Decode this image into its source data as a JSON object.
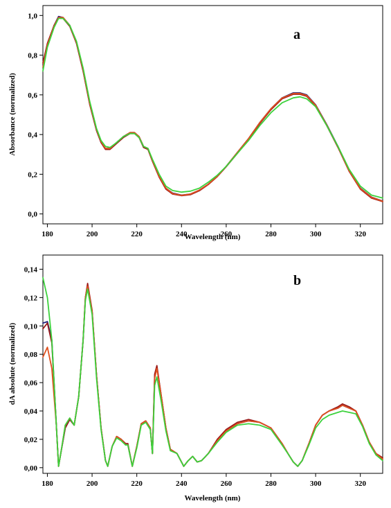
{
  "chart_data": [
    {
      "type": "line",
      "panel_label": "a",
      "xlabel": "Wavelength (nm)",
      "ylabel": "Absorbance (normalized)",
      "xlim": [
        178,
        330
      ],
      "ylim": [
        -0.05,
        1.05
      ],
      "x_ticks": [
        180,
        200,
        220,
        240,
        260,
        280,
        300,
        320
      ],
      "y_ticks": [
        0.0,
        0.2,
        0.4,
        0.6,
        0.8,
        1.0
      ],
      "y_tick_labels": [
        "0,0",
        "0,2",
        "0,4",
        "0,6",
        "0,8",
        "1,0"
      ],
      "grid": false,
      "series": [
        {
          "color": "#1e1e7a",
          "x": [
            178,
            180,
            183,
            185,
            187,
            190,
            193,
            196,
            199,
            202,
            204,
            206,
            208,
            211,
            214,
            217,
            219,
            221,
            223,
            225,
            227,
            230,
            233,
            236,
            240,
            244,
            248,
            252,
            256,
            260,
            265,
            270,
            275,
            280,
            285,
            290,
            293,
            296,
            300,
            305,
            310,
            315,
            320,
            325,
            330
          ],
          "y": [
            0.75,
            0.85,
            0.95,
            0.995,
            0.99,
            0.95,
            0.86,
            0.72,
            0.55,
            0.42,
            0.36,
            0.33,
            0.33,
            0.36,
            0.39,
            0.41,
            0.41,
            0.39,
            0.34,
            0.33,
            0.27,
            0.19,
            0.13,
            0.105,
            0.095,
            0.1,
            0.12,
            0.15,
            0.19,
            0.24,
            0.31,
            0.38,
            0.46,
            0.53,
            0.585,
            0.61,
            0.61,
            0.6,
            0.55,
            0.45,
            0.34,
            0.22,
            0.13,
            0.085,
            0.065
          ]
        },
        {
          "color": "#9a1a1a",
          "x": [
            178,
            180,
            183,
            185,
            187,
            190,
            193,
            196,
            199,
            202,
            204,
            206,
            208,
            211,
            214,
            217,
            219,
            221,
            223,
            225,
            227,
            230,
            233,
            236,
            240,
            244,
            248,
            252,
            256,
            260,
            265,
            270,
            275,
            280,
            285,
            290,
            293,
            296,
            300,
            305,
            310,
            315,
            320,
            325,
            330
          ],
          "y": [
            0.76,
            0.86,
            0.95,
            0.99,
            0.985,
            0.945,
            0.86,
            0.72,
            0.55,
            0.42,
            0.36,
            0.325,
            0.325,
            0.355,
            0.385,
            0.405,
            0.405,
            0.385,
            0.335,
            0.325,
            0.265,
            0.185,
            0.125,
            0.1,
            0.092,
            0.097,
            0.117,
            0.148,
            0.188,
            0.238,
            0.305,
            0.375,
            0.455,
            0.525,
            0.58,
            0.603,
            0.603,
            0.593,
            0.545,
            0.445,
            0.335,
            0.215,
            0.125,
            0.08,
            0.062
          ]
        },
        {
          "color": "#e0501e",
          "x": [
            178,
            180,
            183,
            185,
            187,
            190,
            193,
            196,
            199,
            202,
            204,
            206,
            208,
            211,
            214,
            217,
            219,
            221,
            223,
            225,
            227,
            230,
            233,
            236,
            240,
            244,
            248,
            252,
            256,
            260,
            265,
            270,
            275,
            280,
            285,
            290,
            293,
            296,
            300,
            305,
            310,
            315,
            320,
            325,
            330
          ],
          "y": [
            0.74,
            0.85,
            0.945,
            0.99,
            0.99,
            0.95,
            0.865,
            0.725,
            0.555,
            0.425,
            0.365,
            0.33,
            0.33,
            0.36,
            0.39,
            0.41,
            0.41,
            0.39,
            0.34,
            0.33,
            0.27,
            0.19,
            0.13,
            0.103,
            0.094,
            0.1,
            0.12,
            0.15,
            0.19,
            0.24,
            0.31,
            0.38,
            0.46,
            0.53,
            0.584,
            0.607,
            0.607,
            0.597,
            0.548,
            0.448,
            0.338,
            0.218,
            0.128,
            0.084,
            0.064
          ]
        },
        {
          "color": "#3cd23c",
          "x": [
            178,
            180,
            183,
            185,
            187,
            190,
            193,
            196,
            199,
            202,
            204,
            206,
            208,
            211,
            214,
            217,
            219,
            221,
            223,
            225,
            227,
            230,
            233,
            236,
            240,
            244,
            248,
            252,
            256,
            260,
            265,
            270,
            275,
            280,
            285,
            290,
            293,
            296,
            300,
            305,
            310,
            315,
            320,
            325,
            330
          ],
          "y": [
            0.72,
            0.84,
            0.94,
            0.985,
            0.985,
            0.95,
            0.87,
            0.735,
            0.565,
            0.43,
            0.37,
            0.34,
            0.335,
            0.36,
            0.39,
            0.405,
            0.405,
            0.385,
            0.34,
            0.33,
            0.275,
            0.2,
            0.14,
            0.118,
            0.11,
            0.115,
            0.13,
            0.16,
            0.195,
            0.24,
            0.305,
            0.37,
            0.445,
            0.51,
            0.56,
            0.585,
            0.59,
            0.58,
            0.54,
            0.445,
            0.34,
            0.225,
            0.14,
            0.095,
            0.08
          ]
        }
      ]
    },
    {
      "type": "line",
      "panel_label": "b",
      "xlabel": "Wavelength (nm)",
      "ylabel": "dA absolute (normalized)",
      "xlim": [
        178,
        330
      ],
      "ylim": [
        -0.004,
        0.15
      ],
      "x_ticks": [
        180,
        200,
        220,
        240,
        260,
        280,
        300,
        320
      ],
      "y_ticks": [
        0.0,
        0.02,
        0.04,
        0.06,
        0.08,
        0.1,
        0.12,
        0.14
      ],
      "y_tick_labels": [
        "0,00",
        "0,02",
        "0,04",
        "0,06",
        "0,08",
        "0,10",
        "0,12",
        "0,14"
      ],
      "grid": false,
      "series": [
        {
          "color": "#1e1e7a",
          "x": [
            178,
            180,
            182,
            184,
            185,
            186,
            188,
            190,
            192,
            194,
            196,
            197,
            198,
            200,
            202,
            204,
            206,
            207,
            209,
            211,
            213,
            215,
            216,
            218,
            220,
            222,
            224,
            226,
            227,
            228,
            229,
            231,
            233,
            235,
            238,
            241,
            243,
            245,
            247,
            249,
            252,
            256,
            260,
            265,
            270,
            275,
            280,
            285,
            288,
            290,
            292,
            294,
            297,
            300,
            303,
            306,
            310,
            312,
            315,
            318,
            321,
            324,
            327,
            330
          ],
          "y": [
            0.102,
            0.103,
            0.09,
            0.03,
            0.001,
            0.01,
            0.028,
            0.034,
            0.03,
            0.05,
            0.09,
            0.12,
            0.129,
            0.11,
            0.065,
            0.028,
            0.005,
            0.001,
            0.015,
            0.022,
            0.02,
            0.016,
            0.016,
            0.001,
            0.015,
            0.031,
            0.033,
            0.028,
            0.01,
            0.065,
            0.071,
            0.05,
            0.028,
            0.013,
            0.01,
            0.001,
            0.005,
            0.008,
            0.004,
            0.005,
            0.01,
            0.019,
            0.026,
            0.031,
            0.033,
            0.032,
            0.028,
            0.017,
            0.009,
            0.004,
            0.001,
            0.005,
            0.017,
            0.03,
            0.037,
            0.04,
            0.042,
            0.044,
            0.042,
            0.04,
            0.03,
            0.018,
            0.01,
            0.006
          ]
        },
        {
          "color": "#9a1a1a",
          "x": [
            178,
            180,
            182,
            184,
            185,
            186,
            188,
            190,
            192,
            194,
            196,
            197,
            198,
            200,
            202,
            204,
            206,
            207,
            209,
            211,
            213,
            215,
            216,
            218,
            220,
            222,
            224,
            226,
            227,
            228,
            229,
            231,
            233,
            235,
            238,
            241,
            243,
            245,
            247,
            249,
            252,
            256,
            260,
            265,
            270,
            275,
            280,
            285,
            288,
            290,
            292,
            294,
            297,
            300,
            303,
            306,
            310,
            312,
            315,
            318,
            321,
            324,
            327,
            330
          ],
          "y": [
            0.098,
            0.102,
            0.088,
            0.03,
            0.001,
            0.01,
            0.028,
            0.034,
            0.03,
            0.05,
            0.09,
            0.12,
            0.13,
            0.111,
            0.065,
            0.028,
            0.005,
            0.001,
            0.015,
            0.022,
            0.02,
            0.017,
            0.017,
            0.001,
            0.015,
            0.031,
            0.033,
            0.028,
            0.01,
            0.066,
            0.072,
            0.05,
            0.028,
            0.013,
            0.01,
            0.001,
            0.005,
            0.008,
            0.004,
            0.005,
            0.01,
            0.02,
            0.027,
            0.032,
            0.034,
            0.032,
            0.028,
            0.017,
            0.009,
            0.004,
            0.001,
            0.005,
            0.017,
            0.03,
            0.037,
            0.04,
            0.043,
            0.045,
            0.043,
            0.04,
            0.03,
            0.018,
            0.01,
            0.007
          ]
        },
        {
          "color": "#e0501e",
          "x": [
            178,
            180,
            182,
            184,
            185,
            186,
            188,
            190,
            192,
            194,
            196,
            197,
            198,
            200,
            202,
            204,
            206,
            207,
            209,
            211,
            213,
            215,
            216,
            218,
            220,
            222,
            224,
            226,
            227,
            228,
            229,
            231,
            233,
            235,
            238,
            241,
            243,
            245,
            247,
            249,
            252,
            256,
            260,
            265,
            270,
            275,
            280,
            285,
            288,
            290,
            292,
            294,
            297,
            300,
            303,
            306,
            310,
            312,
            315,
            318,
            321,
            324,
            327,
            330
          ],
          "y": [
            0.078,
            0.085,
            0.07,
            0.03,
            0.001,
            0.01,
            0.03,
            0.035,
            0.03,
            0.05,
            0.09,
            0.12,
            0.128,
            0.11,
            0.065,
            0.028,
            0.005,
            0.001,
            0.015,
            0.022,
            0.02,
            0.016,
            0.016,
            0.001,
            0.015,
            0.031,
            0.033,
            0.028,
            0.01,
            0.063,
            0.07,
            0.05,
            0.028,
            0.013,
            0.01,
            0.001,
            0.005,
            0.008,
            0.004,
            0.005,
            0.01,
            0.019,
            0.026,
            0.031,
            0.033,
            0.032,
            0.028,
            0.017,
            0.009,
            0.004,
            0.001,
            0.005,
            0.017,
            0.03,
            0.037,
            0.04,
            0.042,
            0.044,
            0.042,
            0.04,
            0.03,
            0.018,
            0.01,
            0.006
          ]
        },
        {
          "color": "#3cd23c",
          "x": [
            178,
            180,
            182,
            184,
            185,
            186,
            188,
            190,
            192,
            194,
            196,
            197,
            198,
            200,
            202,
            204,
            206,
            207,
            209,
            211,
            213,
            215,
            216,
            218,
            220,
            222,
            224,
            226,
            227,
            228,
            229,
            231,
            233,
            235,
            238,
            241,
            243,
            245,
            247,
            249,
            252,
            256,
            260,
            265,
            270,
            275,
            280,
            285,
            288,
            290,
            292,
            294,
            297,
            300,
            303,
            306,
            310,
            312,
            315,
            318,
            321,
            324,
            327,
            330
          ],
          "y": [
            0.134,
            0.12,
            0.09,
            0.03,
            0.001,
            0.01,
            0.03,
            0.035,
            0.03,
            0.05,
            0.09,
            0.118,
            0.126,
            0.108,
            0.063,
            0.027,
            0.005,
            0.001,
            0.015,
            0.021,
            0.019,
            0.016,
            0.016,
            0.001,
            0.014,
            0.03,
            0.032,
            0.027,
            0.01,
            0.058,
            0.064,
            0.046,
            0.026,
            0.012,
            0.01,
            0.001,
            0.005,
            0.008,
            0.004,
            0.005,
            0.01,
            0.018,
            0.025,
            0.03,
            0.031,
            0.03,
            0.027,
            0.016,
            0.009,
            0.004,
            0.001,
            0.005,
            0.016,
            0.028,
            0.034,
            0.037,
            0.039,
            0.04,
            0.039,
            0.038,
            0.029,
            0.017,
            0.009,
            0.005
          ]
        }
      ]
    }
  ]
}
